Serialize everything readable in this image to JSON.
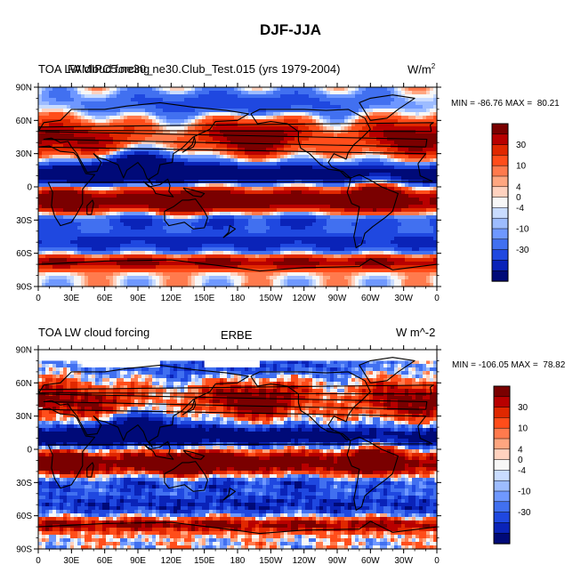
{
  "figure": {
    "title": "DJF-JJA"
  },
  "palette": {
    "colors": [
      "#7a0000",
      "#b80000",
      "#e02800",
      "#ff4d1a",
      "#ff7a4d",
      "#ffa680",
      "#ffd2bf",
      "#f7f7f7",
      "#c9dcff",
      "#9dbcff",
      "#6f98ff",
      "#4170f0",
      "#1f48e0",
      "#0a23b8",
      "#000a78"
    ],
    "continent_color": "#5a2a24",
    "land_outline": "#000000",
    "missing_color": "#ffffff"
  },
  "chart_data": [
    {
      "type": "heatmap",
      "panel_id": "model",
      "title_left": "TOA LW cloud forcing",
      "title_center": "FAMIPC5.ne30_ne30.Club_Test.015 (yrs 1979-2004)",
      "units_html": "W/m²",
      "units_base": "W/m",
      "units_sup": "2",
      "min": -86.76,
      "max": 80.21,
      "stats_text": "MIN = -86.76 MAX =  80.21",
      "x_tick_labels": [
        "0",
        "30E",
        "60E",
        "90E",
        "120E",
        "150E",
        "180",
        "150W",
        "120W",
        "90W",
        "60W",
        "30W",
        "0"
      ],
      "y_tick_labels": [
        "90N",
        "60N",
        "30N",
        "0",
        "30S",
        "60S",
        "90S"
      ],
      "colorbar_labels": [
        "30",
        "10",
        "4",
        "0",
        "-4",
        "-10",
        "-30"
      ],
      "xlim": [
        0,
        360
      ],
      "ylim": [
        -90,
        90
      ]
    },
    {
      "type": "heatmap",
      "panel_id": "obs",
      "title_left": "TOA LW cloud forcing",
      "title_center": "ERBE",
      "units_text": "W m^-2",
      "min": -106.05,
      "max": 78.82,
      "stats_text": "MIN = -106.05 MAX =  78.82",
      "x_tick_labels": [
        "0",
        "30E",
        "60E",
        "90E",
        "120E",
        "150E",
        "180",
        "150W",
        "120W",
        "90W",
        "60W",
        "30W",
        "0"
      ],
      "y_tick_labels": [
        "90N",
        "60N",
        "30N",
        "0",
        "30S",
        "60S",
        "90S"
      ],
      "colorbar_labels": [
        "30",
        "10",
        "4",
        "0",
        "-4",
        "-10",
        "-30"
      ],
      "xlim": [
        0,
        360
      ],
      "ylim": [
        -90,
        90
      ]
    }
  ]
}
